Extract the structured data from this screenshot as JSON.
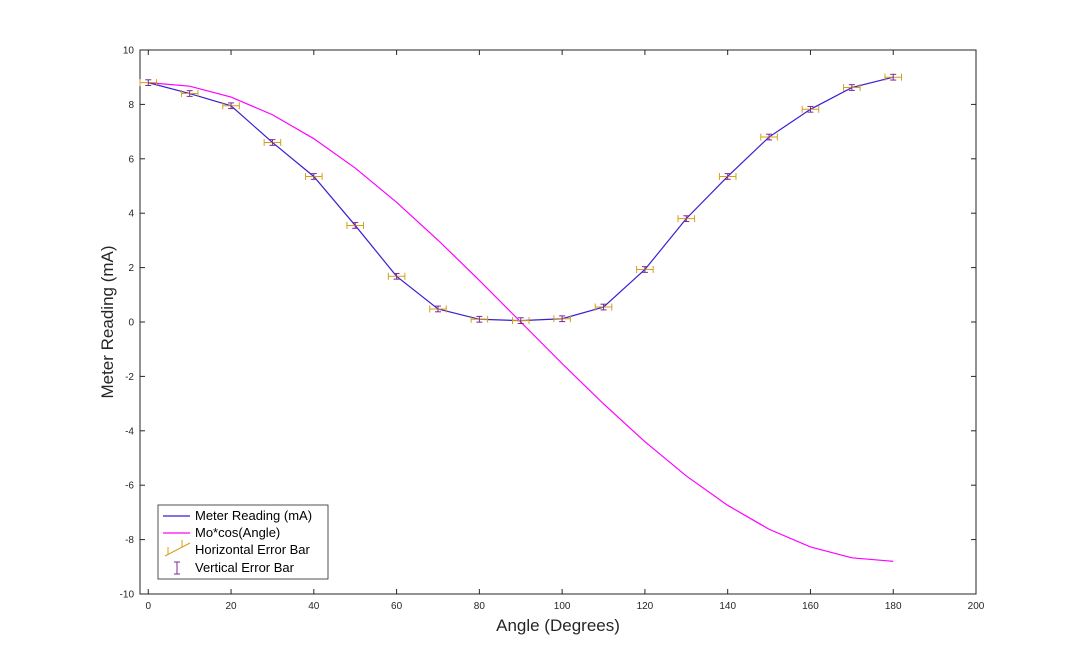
{
  "chart_data": {
    "type": "line",
    "xlabel": "Angle (Degrees)",
    "ylabel": "Meter Reading (mA)",
    "xlim": [
      -2,
      200
    ],
    "ylim": [
      -10,
      10
    ],
    "xticks": [
      0,
      20,
      40,
      60,
      80,
      100,
      120,
      140,
      160,
      180,
      200
    ],
    "yticks": [
      -10,
      -8,
      -6,
      -4,
      -2,
      0,
      2,
      4,
      6,
      8,
      10
    ],
    "grid": false,
    "legend_position": "bottom-left",
    "series": [
      {
        "name": "Meter Reading (mA)",
        "color": "#3a1fd0",
        "x": [
          0,
          10,
          20,
          30,
          40,
          50,
          60,
          70,
          80,
          90,
          100,
          110,
          120,
          130,
          140,
          150,
          160,
          170,
          180
        ],
        "y": [
          8.8,
          8.4,
          7.95,
          6.6,
          5.35,
          3.55,
          1.68,
          0.48,
          0.1,
          0.05,
          0.12,
          0.55,
          1.93,
          3.8,
          5.35,
          6.8,
          7.82,
          8.62,
          9.0
        ]
      },
      {
        "name": "Mo*cos(Angle)",
        "color": "#ff00ff",
        "x": [
          0,
          10,
          20,
          30,
          40,
          50,
          60,
          70,
          80,
          90,
          100,
          110,
          120,
          130,
          140,
          150,
          160,
          170,
          180
        ],
        "y": [
          8.8,
          8.67,
          8.27,
          7.62,
          6.74,
          5.66,
          4.4,
          3.01,
          1.53,
          0.0,
          -1.53,
          -3.01,
          -4.4,
          -5.66,
          -6.74,
          -7.62,
          -8.27,
          -8.67,
          -8.8
        ]
      }
    ],
    "horizontal_error_bar": {
      "name": "Horizontal Error Bar",
      "color": "#d4a017",
      "xerr": 2
    },
    "vertical_error_bar": {
      "name": "Vertical Error Bar",
      "color": "#7b2a8c",
      "yerr": 0.05
    }
  }
}
